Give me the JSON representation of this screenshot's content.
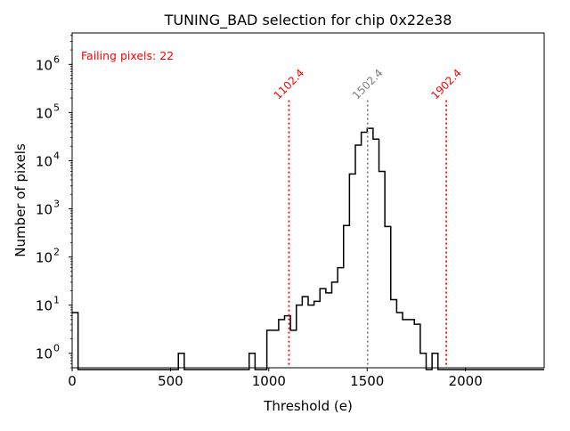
{
  "chart_data": {
    "type": "histogram",
    "title": "TUNING_BAD selection for chip 0x22e38",
    "xlabel": "Threshold (e)",
    "ylabel": "Number of pixels",
    "xlim": [
      0,
      2400
    ],
    "ylim": [
      0.5,
      4500000
    ],
    "yscale": "log",
    "grid": false,
    "xticks": [
      0,
      500,
      1000,
      1500,
      2000
    ],
    "xtick_labels": [
      "0",
      "500",
      "1000",
      "1500",
      "2000"
    ],
    "yticks": [
      1,
      10,
      100,
      1000,
      10000,
      100000,
      1000000
    ],
    "ytick_exponents": [
      "0",
      "1",
      "2",
      "3",
      "4",
      "5",
      "6"
    ],
    "bin_width": 30,
    "bins": [
      {
        "x0": 0,
        "count": 7
      },
      {
        "x0": 540,
        "count": 1
      },
      {
        "x0": 900,
        "count": 1
      },
      {
        "x0": 990,
        "count": 3
      },
      {
        "x0": 1020,
        "count": 3
      },
      {
        "x0": 1050,
        "count": 5
      },
      {
        "x0": 1080,
        "count": 6
      },
      {
        "x0": 1110,
        "count": 3
      },
      {
        "x0": 1140,
        "count": 10
      },
      {
        "x0": 1170,
        "count": 15
      },
      {
        "x0": 1200,
        "count": 10
      },
      {
        "x0": 1230,
        "count": 12
      },
      {
        "x0": 1260,
        "count": 22
      },
      {
        "x0": 1290,
        "count": 18
      },
      {
        "x0": 1320,
        "count": 30
      },
      {
        "x0": 1350,
        "count": 60
      },
      {
        "x0": 1380,
        "count": 450
      },
      {
        "x0": 1410,
        "count": 5300
      },
      {
        "x0": 1440,
        "count": 21000
      },
      {
        "x0": 1470,
        "count": 39000
      },
      {
        "x0": 1500,
        "count": 47000
      },
      {
        "x0": 1530,
        "count": 28000
      },
      {
        "x0": 1560,
        "count": 6000
      },
      {
        "x0": 1590,
        "count": 430
      },
      {
        "x0": 1620,
        "count": 13
      },
      {
        "x0": 1650,
        "count": 7
      },
      {
        "x0": 1680,
        "count": 5
      },
      {
        "x0": 1710,
        "count": 5
      },
      {
        "x0": 1740,
        "count": 4
      },
      {
        "x0": 1770,
        "count": 1
      },
      {
        "x0": 1830,
        "count": 1
      }
    ],
    "vlines": [
      {
        "x": 1102.4,
        "label": "1102.4",
        "color": "#ff0000",
        "top": 180000
      },
      {
        "x": 1502.4,
        "label": "1502.4",
        "color": "#808080",
        "top": 180000
      },
      {
        "x": 1902.4,
        "label": "1902.4",
        "color": "#ff0000",
        "top": 180000
      }
    ],
    "annotations": [
      {
        "text": "Failing pixels: 22",
        "color": "#ff0000",
        "position": "top-left"
      }
    ]
  }
}
